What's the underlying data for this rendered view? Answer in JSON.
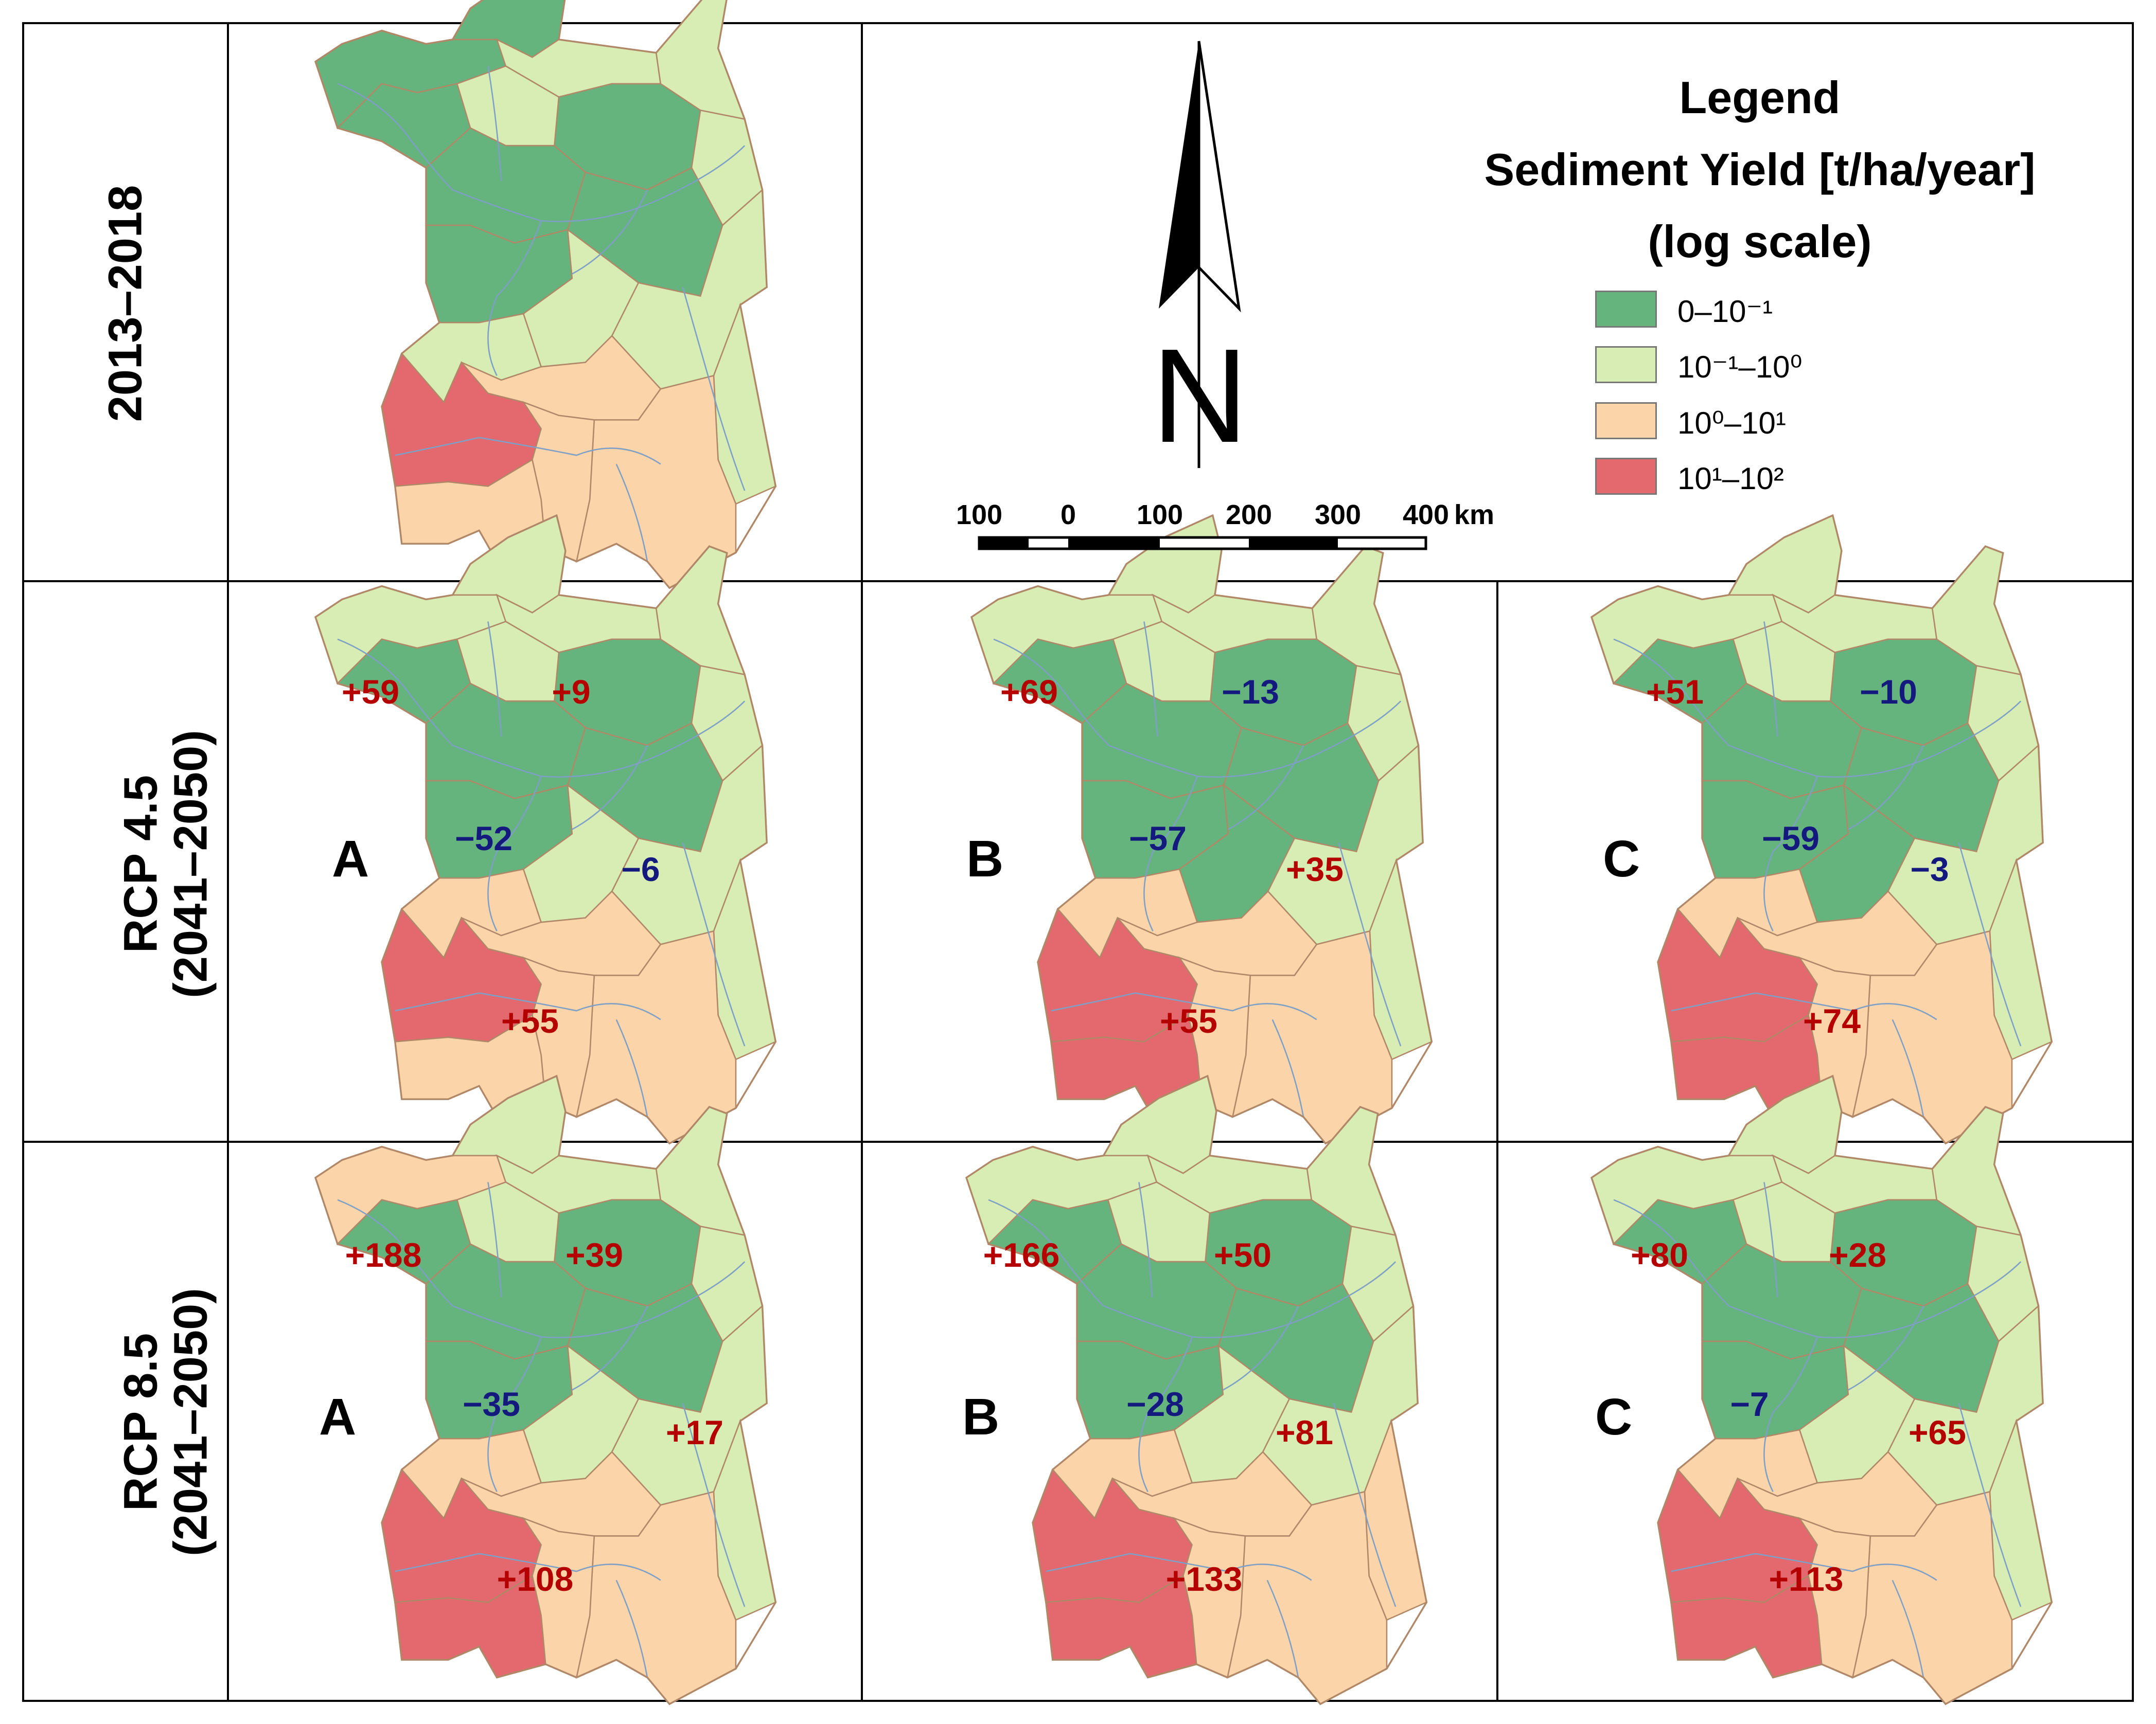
{
  "row_labels": {
    "baseline": "2013–2018",
    "rcp45": {
      "line1": "RCP 4.5",
      "line2": "(2041–2050)"
    },
    "rcp85": {
      "line1": "RCP 8.5",
      "line2": "(2041–2050)"
    }
  },
  "panel_letters": {
    "a": "A",
    "b": "B",
    "c": "C"
  },
  "legend": {
    "title": "Legend",
    "subtitle": "Sediment Yield [t/ha/year]",
    "scale_note": "(log scale)",
    "classes": [
      {
        "label": "0–10⁻¹",
        "color": "#66b47d"
      },
      {
        "label": "10⁻¹–10⁰",
        "color": "#d7edb4"
      },
      {
        "label": "10⁰–10¹",
        "color": "#fbd5a9"
      },
      {
        "label": "10¹–10²",
        "color": "#e3696f"
      }
    ]
  },
  "north_arrow": {
    "letter": "N"
  },
  "scale_bar": {
    "ticks": [
      "100",
      "0",
      "100",
      "200",
      "300",
      "400"
    ],
    "unit": "km"
  },
  "colors": {
    "outline": "#b08868",
    "river": "#7e9fc6",
    "positive": "#b40000",
    "negative": "#14197e"
  },
  "zone_classes": {
    "baseline": [
      "dg",
      "dg",
      "lg",
      "dg",
      "lg",
      "lg",
      "lg",
      "dg",
      "dg",
      "dg",
      "dg",
      "lg",
      "lg",
      "lg",
      "lg",
      "pe",
      "pe",
      "rd",
      "pe",
      "pe"
    ],
    "rcp45_A": [
      "lg",
      "lg",
      "lg",
      "dg",
      "lg",
      "lg",
      "lg",
      "dg",
      "dg",
      "dg",
      "dg",
      "lg",
      "pe",
      "lg",
      "lg",
      "pe",
      "pe",
      "rd",
      "pe",
      "pe"
    ],
    "rcp45_B": [
      "lg",
      "lg",
      "lg",
      "dg",
      "lg",
      "lg",
      "lg",
      "dg",
      "dg",
      "dg",
      "dg",
      "dg",
      "pe",
      "lg",
      "lg",
      "pe",
      "pe",
      "rd",
      "pe",
      "rd"
    ],
    "rcp45_C": [
      "lg",
      "lg",
      "lg",
      "dg",
      "lg",
      "lg",
      "lg",
      "dg",
      "dg",
      "dg",
      "dg",
      "dg",
      "pe",
      "lg",
      "lg",
      "pe",
      "pe",
      "rd",
      "pe",
      "rd"
    ],
    "rcp85_A": [
      "lg",
      "pe",
      "lg",
      "dg",
      "lg",
      "lg",
      "lg",
      "dg",
      "dg",
      "dg",
      "dg",
      "lg",
      "pe",
      "lg",
      "lg",
      "pe",
      "pe",
      "rd",
      "pe",
      "rd"
    ],
    "rcp85_B": [
      "lg",
      "lg",
      "lg",
      "dg",
      "lg",
      "lg",
      "lg",
      "dg",
      "dg",
      "dg",
      "dg",
      "lg",
      "pe",
      "lg",
      "pe",
      "pe",
      "pe",
      "rd",
      "pe",
      "rd"
    ],
    "rcp85_C": [
      "lg",
      "lg",
      "lg",
      "dg",
      "lg",
      "lg",
      "lg",
      "dg",
      "dg",
      "dg",
      "dg",
      "lg",
      "pe",
      "lg",
      "lg",
      "pe",
      "pe",
      "rd",
      "pe",
      "rd"
    ]
  },
  "changes": {
    "rcp45_A": [
      "+59",
      "+9",
      "−52",
      "−6",
      "+55"
    ],
    "rcp45_B": [
      "+69",
      "−13",
      "−57",
      "+35",
      "+55"
    ],
    "rcp45_C": [
      "+51",
      "−10",
      "−59",
      "−3",
      "+74"
    ],
    "rcp85_A": [
      "+188",
      "+39",
      "−35",
      "+17",
      "+108"
    ],
    "rcp85_B": [
      "+166",
      "+50",
      "−28",
      "+81",
      "+133"
    ],
    "rcp85_C": [
      "+80",
      "+28",
      "−7",
      "+65",
      "+113"
    ]
  }
}
